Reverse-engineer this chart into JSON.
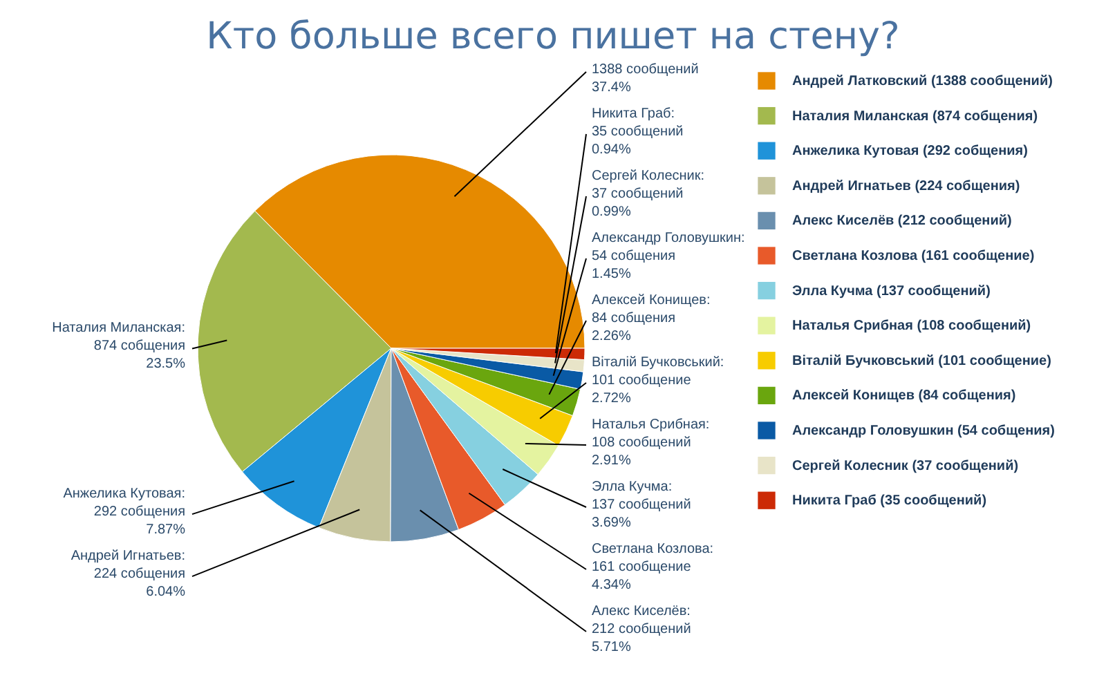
{
  "chart_data": {
    "type": "pie",
    "title": "Кто больше всего пишет на стену?",
    "categories": [
      "Андрей Латковский (1388 сообщений)",
      "Наталия Миланская (874 собщения)",
      "Анжелика Кутовая (292 собщения)",
      "Андрей Игнатьев (224 собщения)",
      "Алекс Киселёв (212 сообщений)",
      "Светлана Козлова (161 сообщение)",
      "Элла Кучма (137 сообщений)",
      "Наталья Срибная (108 сообщений)",
      "Віталій Бучковський (101 сообщение)",
      "Алексей Конищев (84 собщения)",
      "Александр Головушкин (54 собщения)",
      "Сергей Колесник (37 сообщений)",
      "Никита Граб (35 сообщений)"
    ],
    "values": [
      1388,
      874,
      292,
      224,
      212,
      161,
      137,
      108,
      101,
      84,
      54,
      37,
      35
    ],
    "colors": [
      "#e68a00",
      "#a3b94e",
      "#1f93d9",
      "#c5c39b",
      "#6a8fae",
      "#e85a2a",
      "#86d0e0",
      "#e4f3a0",
      "#f7cc00",
      "#6aa60e",
      "#0a5aa5",
      "#e8e4c8",
      "#cc2a06"
    ],
    "value_labels": [
      "1388 сообщений\n37.4%",
      "Наталия Миланская:\n874 собщения\n23.5%",
      "Анжелика Кутовая:\n292 собщения\n7.87%",
      "Андрей Игнатьев:\n224 собщения\n6.04%",
      "Алекс Киселёв:\n212 сообщений\n5.71%",
      "Светлана Козлова:\n161 сообщение\n4.34%",
      "Элла Кучма:\n137 сообщений\n3.69%",
      "Наталья Срибная:\n108 сообщений\n2.91%",
      "Віталій Бучковський:\n101 сообщение\n2.72%",
      "Алексей Конищев:\n84 собщения\n2.26%",
      "Александр Головушкин:\n54 собщения\n1.45%",
      "Сергей Колесник:\n37 сообщений\n0.99%",
      "Никита Граб:\n35 сообщений\n0.94%"
    ],
    "legend": "top right"
  }
}
